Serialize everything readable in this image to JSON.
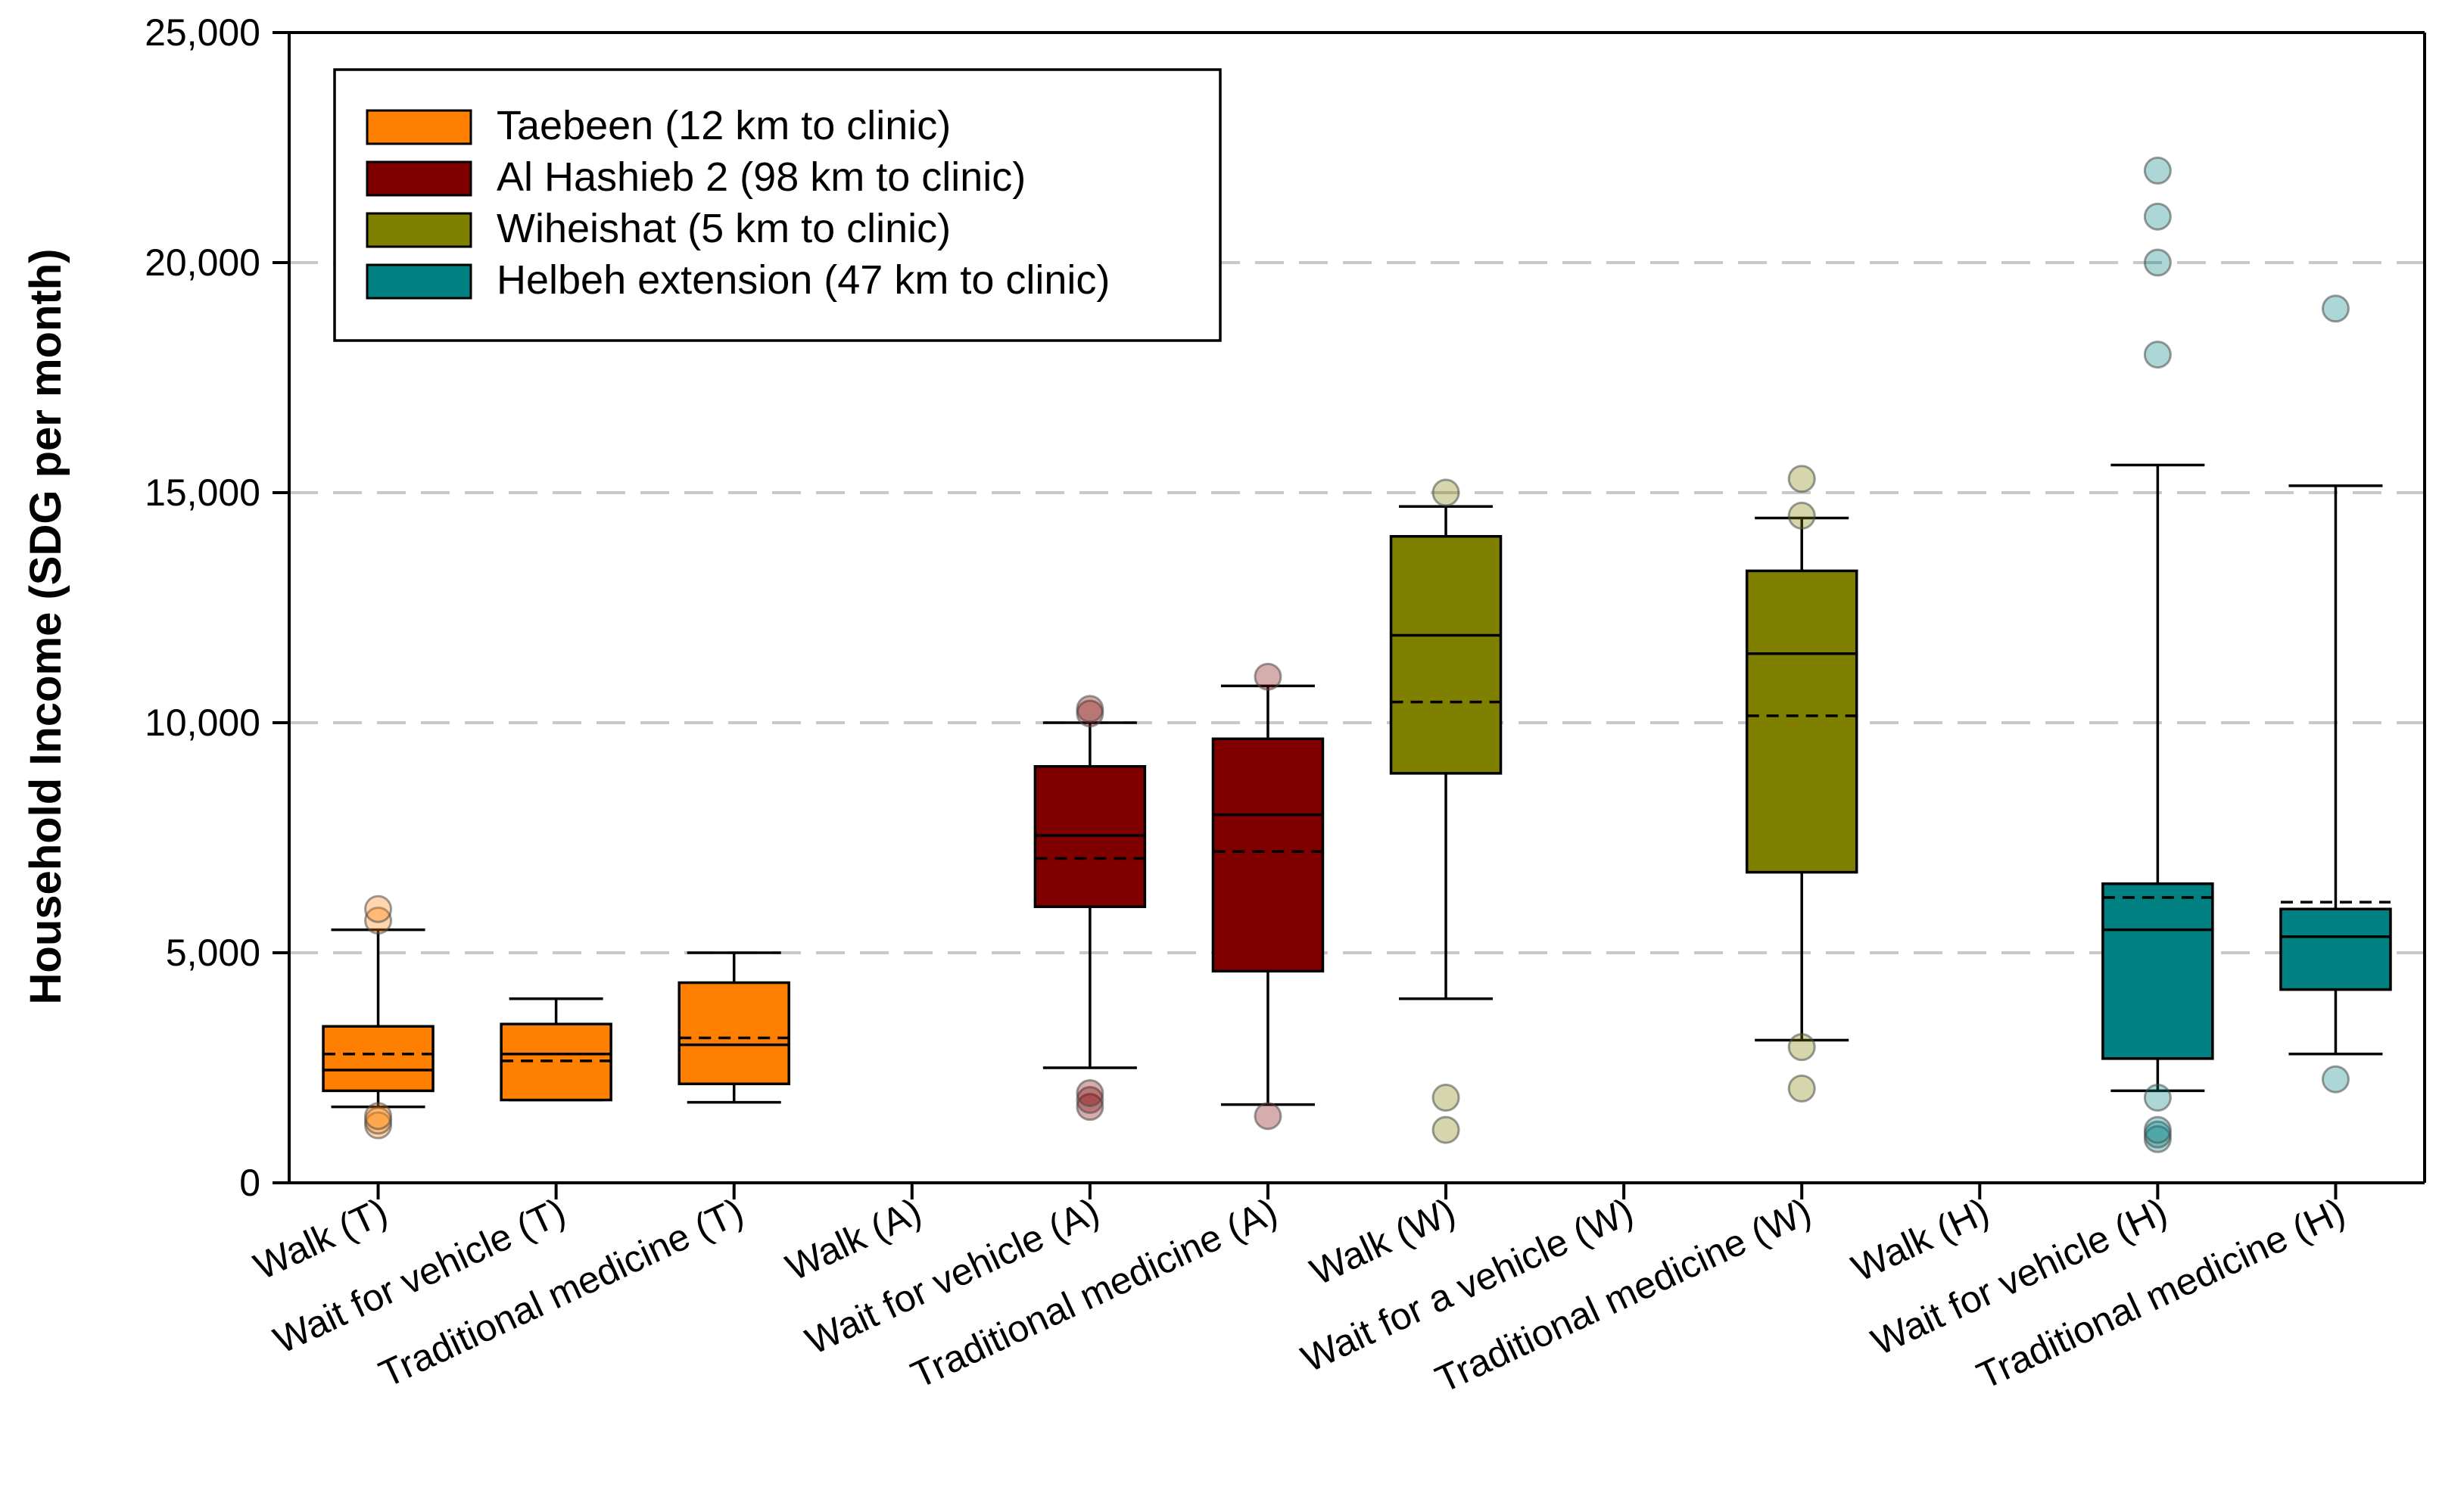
{
  "chart_data": {
    "type": "box",
    "title": "",
    "xlabel": "",
    "ylabel": "Household Income (SDG per month)",
    "ylim": [
      0,
      25000
    ],
    "yticks": [
      0,
      5000,
      10000,
      15000,
      20000,
      25000
    ],
    "ytick_labels": [
      "0",
      "5,000",
      "10,000",
      "15,000",
      "20,000",
      "25,000"
    ],
    "grid_lines": [
      5000,
      10000,
      15000,
      20000
    ],
    "legend_position": "top-left",
    "groups": [
      {
        "key": "T",
        "name": "Taebeen (12 km to clinic)",
        "color": "#FF8000"
      },
      {
        "key": "A",
        "name": "Al Hashieb 2 (98 km to clinic)",
        "color": "#800000"
      },
      {
        "key": "W",
        "name": "Wiheishat (5 km to clinic)",
        "color": "#808000"
      },
      {
        "key": "H",
        "name": "Helbeh extension (47 km to clinic)",
        "color": "#008080"
      }
    ],
    "categories": [
      "Walk (T)",
      "Wait for vehicle (T)",
      "Traditional medicine (T)",
      "Walk (A)",
      "Wait for vehicle (A)",
      "Traditional medicine (A)",
      "Walk (W)",
      "Wait for a vehicle (W)",
      "Traditional medicine (W)",
      "Walk (H)",
      "Wait for vehicle (H)",
      "Traditional medicine (H)"
    ],
    "boxes": [
      {
        "category": "Walk (T)",
        "group": "T",
        "whisker_low": 1650,
        "q1": 2000,
        "median": 2450,
        "mean": 2800,
        "q3": 3400,
        "whisker_high": 5500,
        "outliers": [
          1250,
          1350,
          1450,
          5700,
          5950
        ]
      },
      {
        "category": "Wait for vehicle (T)",
        "group": "T",
        "whisker_low": 1800,
        "q1": 1800,
        "median": 2800,
        "mean": 2650,
        "q3": 3450,
        "whisker_high": 4000,
        "outliers": []
      },
      {
        "category": "Traditional medicine (T)",
        "group": "T",
        "whisker_low": 1750,
        "q1": 2150,
        "median": 3000,
        "mean": 3150,
        "q3": 4350,
        "whisker_high": 5000,
        "outliers": []
      },
      {
        "category": "Walk (A)",
        "group": "A",
        "empty": true
      },
      {
        "category": "Wait for vehicle (A)",
        "group": "A",
        "whisker_low": 2500,
        "q1": 6000,
        "median": 7550,
        "mean": 7050,
        "q3": 9050,
        "whisker_high": 10000,
        "outliers": [
          1650,
          1800,
          1950,
          10200,
          10300
        ]
      },
      {
        "category": "Traditional medicine (A)",
        "group": "A",
        "whisker_low": 1700,
        "q1": 4600,
        "median": 8000,
        "mean": 7200,
        "q3": 9650,
        "whisker_high": 10800,
        "outliers": [
          1450,
          11000
        ]
      },
      {
        "category": "Walk (W)",
        "group": "W",
        "whisker_low": 4000,
        "q1": 8900,
        "median": 11900,
        "mean": 10450,
        "q3": 14050,
        "whisker_high": 14700,
        "outliers": [
          1150,
          1850,
          15000
        ]
      },
      {
        "category": "Wait for a vehicle (W)",
        "group": "W",
        "empty": true
      },
      {
        "category": "Traditional medicine (W)",
        "group": "W",
        "whisker_low": 3100,
        "q1": 6750,
        "median": 11500,
        "mean": 10150,
        "q3": 13300,
        "whisker_high": 14450,
        "outliers": [
          2050,
          2950,
          14500,
          15300
        ]
      },
      {
        "category": "Walk (H)",
        "group": "H",
        "empty": true
      },
      {
        "category": "Wait for vehicle (H)",
        "group": "H",
        "whisker_low": 2000,
        "q1": 2700,
        "median": 5500,
        "mean": 6200,
        "q3": 6500,
        "whisker_high": 15600,
        "outliers": [
          950,
          1050,
          1150,
          1850,
          18000,
          20000,
          21000,
          22000
        ]
      },
      {
        "category": "Traditional medicine (H)",
        "group": "H",
        "whisker_low": 2800,
        "q1": 4200,
        "median": 5350,
        "mean": 6100,
        "q3": 5950,
        "whisker_high": 15150,
        "outliers": [
          2250,
          19000
        ]
      }
    ]
  }
}
